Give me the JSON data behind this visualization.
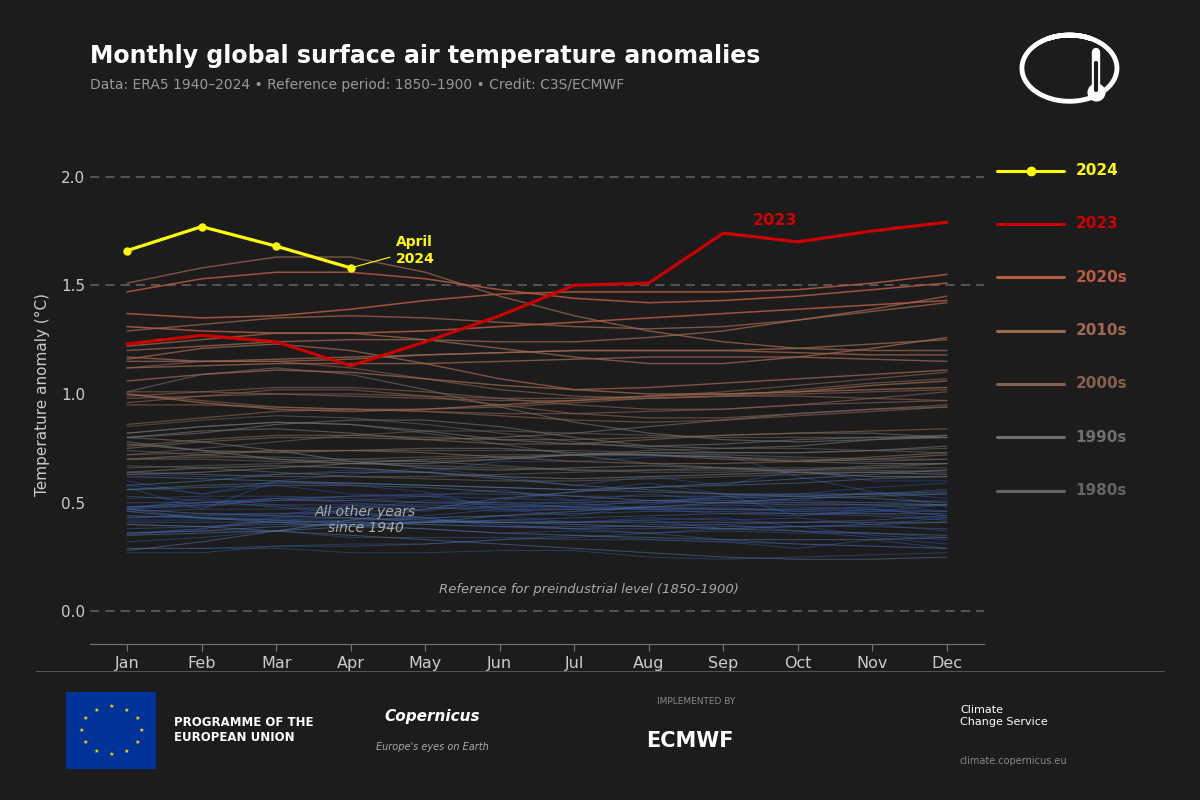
{
  "title": "Monthly global surface air temperature anomalies",
  "subtitle": "Data: ERA5 1940–2024 • Reference period: 1850–1900 • Credit: C3S/ECMWF",
  "ylabel": "Temperature anomaly (°C)",
  "background_color": "#1c1c1c",
  "text_color": "#cccccc",
  "months": [
    "Jan",
    "Feb",
    "Mar",
    "Apr",
    "May",
    "Jun",
    "Jul",
    "Aug",
    "Sep",
    "Oct",
    "Nov",
    "Dec"
  ],
  "ylim": [
    -0.15,
    2.15
  ],
  "yticks": [
    0.0,
    0.5,
    1.0,
    1.5,
    2.0
  ],
  "dashed_lines": [
    0.0,
    1.5,
    2.0
  ],
  "data_2024": [
    1.66,
    1.77,
    1.68,
    1.58,
    null,
    null,
    null,
    null,
    null,
    null,
    null,
    null
  ],
  "data_2023": [
    1.23,
    1.27,
    1.24,
    1.13,
    1.24,
    1.36,
    1.5,
    1.51,
    1.74,
    1.7,
    1.75,
    1.79
  ],
  "other_years_data": {
    "1940": [
      0.57,
      0.47,
      0.6,
      0.58,
      0.55,
      0.47,
      0.44,
      0.49,
      0.53,
      0.51,
      0.55,
      0.52
    ],
    "1941": [
      0.58,
      0.54,
      0.6,
      0.63,
      0.66,
      0.62,
      0.58,
      0.62,
      0.58,
      0.65,
      0.6,
      0.6
    ],
    "1942": [
      0.6,
      0.54,
      0.58,
      0.54,
      0.53,
      0.49,
      0.5,
      0.47,
      0.48,
      0.46,
      0.47,
      0.44
    ],
    "1943": [
      0.48,
      0.5,
      0.52,
      0.51,
      0.53,
      0.56,
      0.51,
      0.5,
      0.53,
      0.54,
      0.57,
      0.59
    ],
    "1944": [
      0.63,
      0.62,
      0.63,
      0.65,
      0.64,
      0.69,
      0.69,
      0.71,
      0.72,
      0.62,
      0.55,
      0.48
    ],
    "1945": [
      0.47,
      0.43,
      0.44,
      0.49,
      0.46,
      0.51,
      0.55,
      0.59,
      0.54,
      0.44,
      0.47,
      0.44
    ],
    "1946": [
      0.47,
      0.52,
      0.49,
      0.46,
      0.43,
      0.39,
      0.38,
      0.4,
      0.4,
      0.37,
      0.34,
      0.31
    ],
    "1947": [
      0.36,
      0.38,
      0.42,
      0.43,
      0.41,
      0.41,
      0.41,
      0.43,
      0.42,
      0.43,
      0.4,
      0.43
    ],
    "1948": [
      0.43,
      0.45,
      0.45,
      0.45,
      0.43,
      0.44,
      0.41,
      0.42,
      0.43,
      0.39,
      0.4,
      0.37
    ],
    "1949": [
      0.42,
      0.42,
      0.43,
      0.43,
      0.41,
      0.42,
      0.41,
      0.42,
      0.38,
      0.39,
      0.35,
      0.33
    ],
    "1950": [
      0.27,
      0.27,
      0.3,
      0.31,
      0.31,
      0.33,
      0.35,
      0.33,
      0.32,
      0.29,
      0.33,
      0.29
    ],
    "1951": [
      0.35,
      0.38,
      0.43,
      0.47,
      0.51,
      0.5,
      0.48,
      0.51,
      0.51,
      0.5,
      0.49,
      0.46
    ],
    "1952": [
      0.48,
      0.5,
      0.52,
      0.5,
      0.48,
      0.46,
      0.47,
      0.48,
      0.49,
      0.48,
      0.47,
      0.46
    ],
    "1953": [
      0.48,
      0.48,
      0.52,
      0.53,
      0.53,
      0.52,
      0.51,
      0.54,
      0.51,
      0.51,
      0.5,
      0.51
    ],
    "1954": [
      0.44,
      0.43,
      0.42,
      0.4,
      0.38,
      0.36,
      0.37,
      0.36,
      0.37,
      0.36,
      0.36,
      0.34
    ],
    "1955": [
      0.36,
      0.37,
      0.37,
      0.34,
      0.34,
      0.34,
      0.33,
      0.33,
      0.32,
      0.31,
      0.3,
      0.29
    ],
    "1956": [
      0.29,
      0.29,
      0.29,
      0.27,
      0.27,
      0.28,
      0.28,
      0.25,
      0.24,
      0.25,
      0.26,
      0.27
    ],
    "1957": [
      0.32,
      0.34,
      0.37,
      0.41,
      0.44,
      0.47,
      0.47,
      0.47,
      0.45,
      0.44,
      0.46,
      0.49
    ],
    "1958": [
      0.52,
      0.53,
      0.53,
      0.52,
      0.5,
      0.49,
      0.48,
      0.47,
      0.47,
      0.47,
      0.46,
      0.46
    ],
    "1959": [
      0.46,
      0.47,
      0.47,
      0.48,
      0.48,
      0.47,
      0.47,
      0.47,
      0.47,
      0.46,
      0.45,
      0.43
    ],
    "1960": [
      0.41,
      0.41,
      0.41,
      0.41,
      0.4,
      0.39,
      0.38,
      0.38,
      0.39,
      0.39,
      0.4,
      0.41
    ],
    "1961": [
      0.43,
      0.44,
      0.45,
      0.46,
      0.47,
      0.48,
      0.49,
      0.5,
      0.5,
      0.5,
      0.5,
      0.49
    ],
    "1962": [
      0.48,
      0.49,
      0.49,
      0.49,
      0.49,
      0.48,
      0.48,
      0.48,
      0.47,
      0.47,
      0.48,
      0.49
    ],
    "1963": [
      0.5,
      0.5,
      0.51,
      0.51,
      0.5,
      0.5,
      0.5,
      0.51,
      0.52,
      0.53,
      0.54,
      0.54
    ],
    "1964": [
      0.53,
      0.51,
      0.48,
      0.45,
      0.43,
      0.4,
      0.38,
      0.36,
      0.33,
      0.31,
      0.3,
      0.29
    ],
    "1965": [
      0.29,
      0.29,
      0.3,
      0.3,
      0.31,
      0.33,
      0.34,
      0.36,
      0.38,
      0.39,
      0.39,
      0.38
    ],
    "1966": [
      0.38,
      0.39,
      0.41,
      0.42,
      0.43,
      0.44,
      0.45,
      0.46,
      0.46,
      0.45,
      0.44,
      0.42
    ],
    "1967": [
      0.4,
      0.39,
      0.4,
      0.4,
      0.41,
      0.42,
      0.43,
      0.44,
      0.45,
      0.45,
      0.45,
      0.45
    ],
    "1968": [
      0.44,
      0.43,
      0.42,
      0.41,
      0.4,
      0.39,
      0.39,
      0.39,
      0.4,
      0.41,
      0.42,
      0.44
    ],
    "1969": [
      0.47,
      0.49,
      0.51,
      0.53,
      0.54,
      0.54,
      0.53,
      0.53,
      0.53,
      0.53,
      0.54,
      0.56
    ],
    "1970": [
      0.56,
      0.57,
      0.58,
      0.58,
      0.57,
      0.55,
      0.53,
      0.51,
      0.5,
      0.49,
      0.49,
      0.49
    ],
    "1971": [
      0.47,
      0.45,
      0.44,
      0.43,
      0.42,
      0.41,
      0.4,
      0.39,
      0.38,
      0.37,
      0.36,
      0.35
    ],
    "1972": [
      0.35,
      0.36,
      0.37,
      0.39,
      0.41,
      0.44,
      0.46,
      0.48,
      0.5,
      0.52,
      0.53,
      0.54
    ],
    "1973": [
      0.58,
      0.6,
      0.63,
      0.64,
      0.64,
      0.61,
      0.58,
      0.56,
      0.54,
      0.53,
      0.52,
      0.5
    ],
    "1974": [
      0.46,
      0.43,
      0.41,
      0.39,
      0.38,
      0.36,
      0.35,
      0.34,
      0.33,
      0.33,
      0.33,
      0.34
    ],
    "1975": [
      0.36,
      0.37,
      0.39,
      0.4,
      0.41,
      0.41,
      0.41,
      0.41,
      0.41,
      0.41,
      0.41,
      0.41
    ],
    "1976": [
      0.4,
      0.39,
      0.37,
      0.35,
      0.33,
      0.31,
      0.29,
      0.27,
      0.25,
      0.24,
      0.24,
      0.25
    ],
    "1977": [
      0.28,
      0.32,
      0.37,
      0.42,
      0.47,
      0.52,
      0.55,
      0.57,
      0.58,
      0.59,
      0.61,
      0.62
    ],
    "1978": [
      0.62,
      0.61,
      0.6,
      0.59,
      0.58,
      0.57,
      0.56,
      0.55,
      0.54,
      0.54,
      0.54,
      0.55
    ],
    "1979": [
      0.56,
      0.58,
      0.59,
      0.59,
      0.58,
      0.57,
      0.56,
      0.57,
      0.59,
      0.61,
      0.63,
      0.65
    ],
    "1980": [
      0.7,
      0.71,
      0.71,
      0.7,
      0.69,
      0.67,
      0.65,
      0.64,
      0.64,
      0.65,
      0.67,
      0.68
    ],
    "1981": [
      0.72,
      0.73,
      0.74,
      0.74,
      0.74,
      0.74,
      0.74,
      0.73,
      0.72,
      0.71,
      0.7,
      0.7
    ],
    "1982": [
      0.7,
      0.7,
      0.69,
      0.68,
      0.67,
      0.66,
      0.65,
      0.65,
      0.65,
      0.65,
      0.65,
      0.64
    ],
    "1983": [
      0.82,
      0.85,
      0.87,
      0.86,
      0.82,
      0.77,
      0.72,
      0.68,
      0.66,
      0.65,
      0.66,
      0.68
    ],
    "1984": [
      0.67,
      0.66,
      0.64,
      0.62,
      0.61,
      0.6,
      0.6,
      0.61,
      0.62,
      0.63,
      0.64,
      0.65
    ],
    "1985": [
      0.64,
      0.63,
      0.62,
      0.62,
      0.62,
      0.63,
      0.64,
      0.65,
      0.66,
      0.66,
      0.66,
      0.66
    ],
    "1986": [
      0.66,
      0.67,
      0.68,
      0.7,
      0.71,
      0.72,
      0.72,
      0.72,
      0.71,
      0.7,
      0.69,
      0.7
    ],
    "1987": [
      0.72,
      0.75,
      0.78,
      0.81,
      0.83,
      0.83,
      0.82,
      0.81,
      0.8,
      0.8,
      0.8,
      0.81
    ],
    "1988": [
      0.85,
      0.88,
      0.9,
      0.89,
      0.86,
      0.82,
      0.78,
      0.75,
      0.73,
      0.73,
      0.74,
      0.75
    ],
    "1989": [
      0.74,
      0.72,
      0.7,
      0.69,
      0.69,
      0.7,
      0.72,
      0.74,
      0.75,
      0.75,
      0.74,
      0.73
    ],
    "1990": [
      0.82,
      0.85,
      0.87,
      0.86,
      0.83,
      0.79,
      0.77,
      0.76,
      0.77,
      0.79,
      0.8,
      0.8
    ],
    "1991": [
      0.8,
      0.82,
      0.86,
      0.88,
      0.88,
      0.85,
      0.8,
      0.76,
      0.75,
      0.76,
      0.79,
      0.81
    ],
    "1992": [
      0.8,
      0.78,
      0.74,
      0.69,
      0.66,
      0.65,
      0.66,
      0.67,
      0.66,
      0.64,
      0.62,
      0.62
    ],
    "1993": [
      0.64,
      0.66,
      0.67,
      0.66,
      0.64,
      0.62,
      0.61,
      0.62,
      0.63,
      0.64,
      0.64,
      0.63
    ],
    "1994": [
      0.63,
      0.64,
      0.66,
      0.68,
      0.7,
      0.71,
      0.72,
      0.73,
      0.73,
      0.73,
      0.74,
      0.76
    ],
    "1995": [
      0.8,
      0.83,
      0.84,
      0.82,
      0.79,
      0.77,
      0.77,
      0.79,
      0.81,
      0.82,
      0.82,
      0.8
    ],
    "1996": [
      0.77,
      0.74,
      0.73,
      0.74,
      0.75,
      0.75,
      0.73,
      0.72,
      0.7,
      0.69,
      0.7,
      0.72
    ],
    "1997": [
      0.75,
      0.78,
      0.8,
      0.8,
      0.79,
      0.8,
      0.82,
      0.85,
      0.88,
      0.91,
      0.93,
      0.94
    ],
    "1998": [
      1.01,
      1.09,
      1.12,
      1.09,
      1.02,
      0.94,
      0.87,
      0.82,
      0.79,
      0.78,
      0.79,
      0.8
    ],
    "1999": [
      0.78,
      0.74,
      0.7,
      0.68,
      0.68,
      0.7,
      0.72,
      0.72,
      0.71,
      0.69,
      0.68,
      0.68
    ],
    "2000": [
      0.7,
      0.72,
      0.74,
      0.74,
      0.73,
      0.71,
      0.69,
      0.68,
      0.68,
      0.69,
      0.71,
      0.73
    ],
    "2001": [
      0.76,
      0.79,
      0.81,
      0.81,
      0.8,
      0.79,
      0.79,
      0.8,
      0.81,
      0.82,
      0.83,
      0.84
    ],
    "2002": [
      0.86,
      0.89,
      0.92,
      0.93,
      0.92,
      0.9,
      0.88,
      0.87,
      0.88,
      0.9,
      0.92,
      0.94
    ],
    "2003": [
      0.96,
      0.99,
      1.02,
      1.02,
      0.99,
      0.95,
      0.91,
      0.89,
      0.89,
      0.91,
      0.93,
      0.95
    ],
    "2004": [
      0.95,
      0.95,
      0.94,
      0.93,
      0.92,
      0.91,
      0.91,
      0.92,
      0.93,
      0.95,
      0.96,
      0.97
    ],
    "2005": [
      0.99,
      1.01,
      1.03,
      1.03,
      1.01,
      0.98,
      0.95,
      0.93,
      0.93,
      0.95,
      0.98,
      1.01
    ],
    "2006": [
      1.01,
      1.01,
      1.0,
      0.99,
      0.98,
      0.97,
      0.97,
      0.98,
      0.99,
      1.0,
      1.01,
      1.02
    ],
    "2007": [
      1.12,
      1.15,
      1.15,
      1.12,
      1.07,
      1.02,
      0.99,
      0.98,
      0.99,
      1.02,
      1.05,
      1.07
    ],
    "2008": [
      1.0,
      0.97,
      0.94,
      0.93,
      0.93,
      0.94,
      0.96,
      0.98,
      0.99,
      0.99,
      0.98,
      0.97
    ],
    "2009": [
      0.98,
      0.99,
      1.0,
      1.0,
      0.99,
      0.98,
      0.98,
      0.99,
      1.01,
      1.04,
      1.07,
      1.1
    ],
    "2010": [
      1.16,
      1.21,
      1.23,
      1.2,
      1.14,
      1.07,
      1.02,
      1.0,
      1.0,
      1.01,
      1.04,
      1.06
    ],
    "2011": [
      1.0,
      0.96,
      0.93,
      0.92,
      0.93,
      0.95,
      0.97,
      0.99,
      1.0,
      1.01,
      1.02,
      1.03
    ],
    "2012": [
      1.06,
      1.09,
      1.11,
      1.1,
      1.07,
      1.04,
      1.02,
      1.03,
      1.05,
      1.07,
      1.09,
      1.11
    ],
    "2013": [
      1.12,
      1.13,
      1.14,
      1.14,
      1.14,
      1.15,
      1.16,
      1.17,
      1.17,
      1.17,
      1.16,
      1.15
    ],
    "2014": [
      1.15,
      1.15,
      1.16,
      1.17,
      1.18,
      1.19,
      1.2,
      1.2,
      1.2,
      1.19,
      1.18,
      1.18
    ],
    "2015": [
      1.2,
      1.22,
      1.24,
      1.25,
      1.25,
      1.24,
      1.24,
      1.26,
      1.29,
      1.34,
      1.39,
      1.45
    ],
    "2016": [
      1.51,
      1.58,
      1.63,
      1.63,
      1.56,
      1.45,
      1.36,
      1.29,
      1.24,
      1.21,
      1.2,
      1.2
    ],
    "2017": [
      1.22,
      1.25,
      1.28,
      1.28,
      1.25,
      1.21,
      1.17,
      1.14,
      1.14,
      1.17,
      1.21,
      1.26
    ],
    "2018": [
      1.17,
      1.15,
      1.15,
      1.16,
      1.18,
      1.19,
      1.2,
      1.2,
      1.2,
      1.21,
      1.23,
      1.25
    ],
    "2019": [
      1.29,
      1.32,
      1.35,
      1.36,
      1.35,
      1.33,
      1.31,
      1.3,
      1.31,
      1.34,
      1.38,
      1.42
    ],
    "2020": [
      1.47,
      1.53,
      1.56,
      1.56,
      1.53,
      1.48,
      1.44,
      1.42,
      1.43,
      1.45,
      1.48,
      1.51
    ],
    "2021": [
      1.31,
      1.29,
      1.28,
      1.28,
      1.29,
      1.31,
      1.33,
      1.35,
      1.37,
      1.39,
      1.41,
      1.43
    ],
    "2022": [
      1.37,
      1.35,
      1.36,
      1.39,
      1.43,
      1.46,
      1.47,
      1.47,
      1.47,
      1.48,
      1.51,
      1.55
    ]
  }
}
